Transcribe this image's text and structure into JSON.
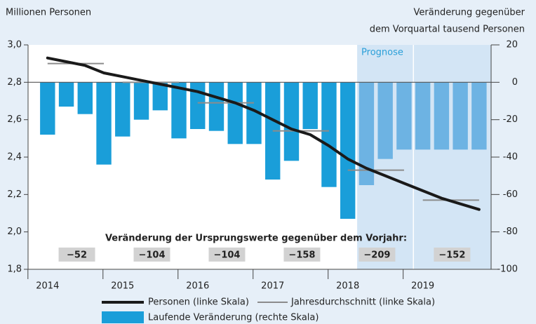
{
  "chart_data": {
    "type": "bar-line",
    "ylabel": "Millionen Personen",
    "y2label": [
      "Veränderung gegenüber",
      "dem Vorquartal tausend Personen"
    ],
    "x": [
      2014,
      2014.25,
      2014.5,
      2014.75,
      2015,
      2015.25,
      2015.5,
      2015.75,
      2016,
      2016.25,
      2016.5,
      2016.75,
      2017,
      2017.25,
      2017.5,
      2017.75,
      2018,
      2018.25,
      2018.5,
      2018.75,
      2019,
      2019.25,
      2019.5,
      2019.75
    ],
    "xlim": [
      2013.74,
      2019.91
    ],
    "xticks": [
      2014,
      2015,
      2016,
      2017,
      2018,
      2019
    ],
    "ylim": [
      1.8,
      3.0
    ],
    "yticks": [
      {
        "value": 1.8,
        "label": "1,8"
      },
      {
        "value": 2.0,
        "label": "2,0"
      },
      {
        "value": 2.2,
        "label": "2,2"
      },
      {
        "value": 2.4,
        "label": "2,4"
      },
      {
        "value": 2.6,
        "label": "2,6"
      },
      {
        "value": 2.8,
        "label": "2,8"
      },
      {
        "value": 3.0,
        "label": "3,0"
      }
    ],
    "y2lim": [
      -100,
      20
    ],
    "y2ticks": [
      -100,
      -80,
      -60,
      -40,
      -20,
      0,
      20
    ],
    "grid": false,
    "series": [
      {
        "name": "Laufende Veränderung (rechte Skala)",
        "kind": "bar",
        "axis": "y2",
        "color": "#1a9ed9",
        "forecast_color": "#6db3e3",
        "values": [
          -28,
          -13,
          -17,
          -44,
          -29,
          -20,
          -15,
          -30,
          -25,
          -26,
          -33,
          -33,
          -52,
          -42,
          -25,
          -56,
          -73,
          -55,
          -41,
          -36,
          -36,
          -36,
          -36,
          -36
        ]
      },
      {
        "name": "Personen (linke Skala)",
        "kind": "line",
        "axis": "y",
        "color": "#1a1a1a",
        "values": [
          2.93,
          2.91,
          2.89,
          2.85,
          2.83,
          2.81,
          2.79,
          2.77,
          2.75,
          2.72,
          2.69,
          2.65,
          2.6,
          2.55,
          2.52,
          2.46,
          2.39,
          2.34,
          2.3,
          2.26,
          2.22,
          2.18,
          2.15,
          2.12
        ]
      }
    ],
    "averages": {
      "name": "Jahresdurchschnitt (linke Skala)",
      "color": "#8c8c8c",
      "x": [
        2014,
        2015,
        2016,
        2017,
        2018,
        2019
      ],
      "values": [
        2.9,
        2.8,
        2.69,
        2.54,
        2.33,
        2.17
      ]
    },
    "forecast": {
      "label": "Prognose",
      "from": 2018.125,
      "split": 2018.875,
      "color": "#d3e5f5"
    },
    "annotation": {
      "title": "Veränderung der Ursprungswerte gegenüber dem Vorjahr:",
      "x": [
        2014.39,
        2015.39,
        2016.39,
        2017.39,
        2018.39,
        2019.39
      ],
      "values": [
        -52,
        -104,
        -104,
        -158,
        -209,
        -152
      ],
      "value_labels": [
        "−52",
        "−104",
        "−104",
        "−158",
        "−209",
        "−152"
      ]
    }
  }
}
